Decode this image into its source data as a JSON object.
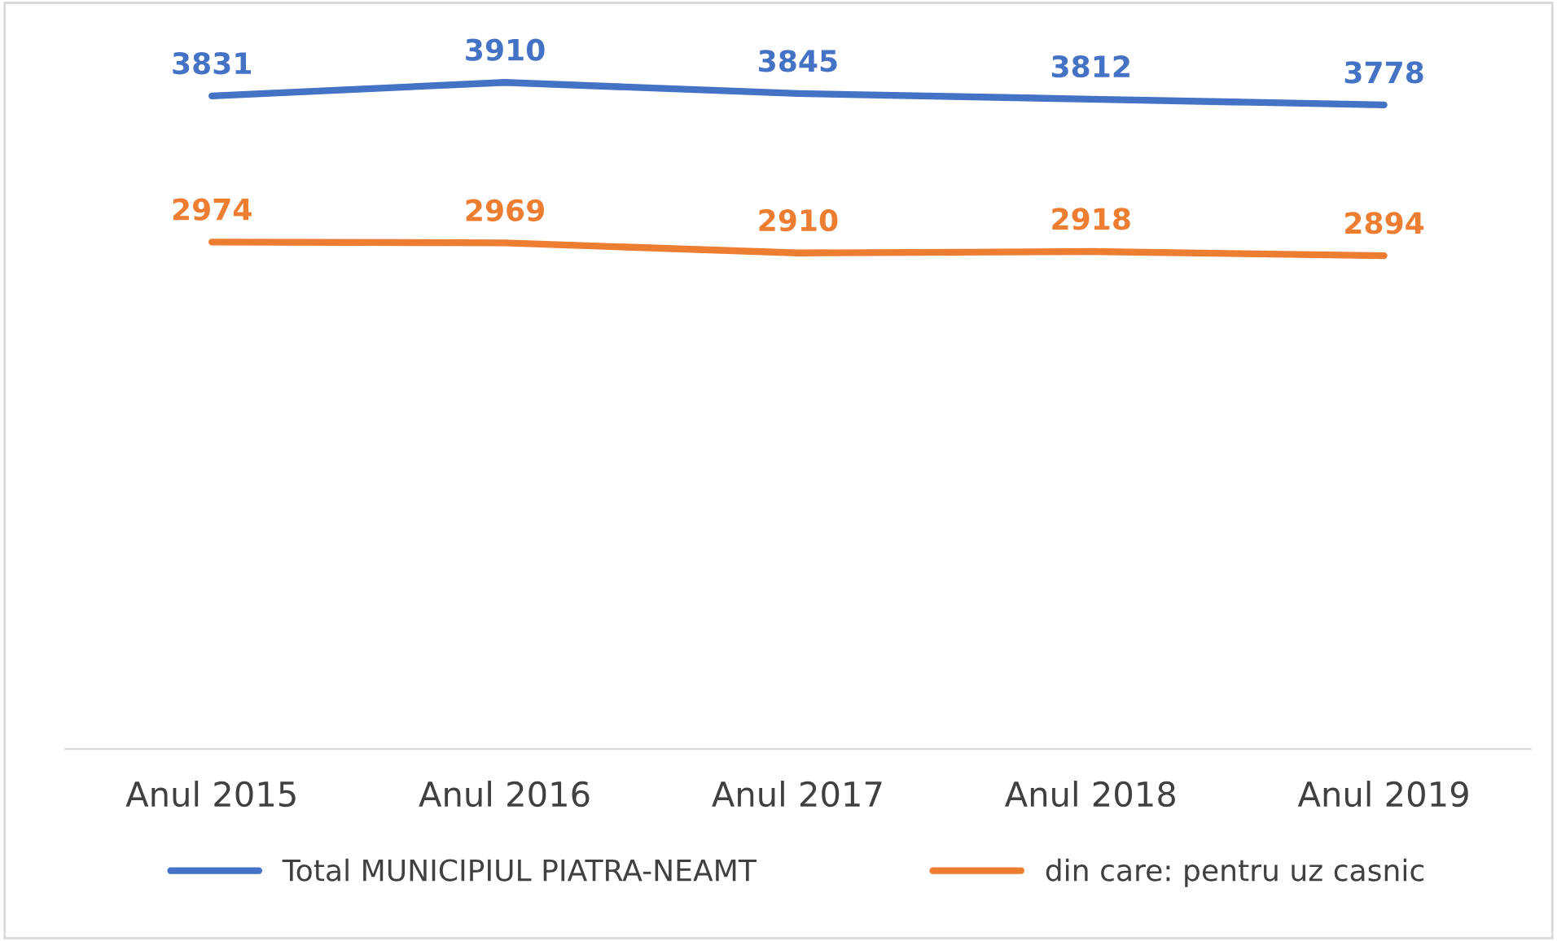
{
  "chart_data": {
    "type": "line",
    "categories": [
      "Anul 2015",
      "Anul 2016",
      "Anul 2017",
      "Anul 2018",
      "Anul 2019"
    ],
    "series": [
      {
        "name": "Total MUNICIPIUL PIATRA-NEAMT",
        "color": "#4472c4",
        "values": [
          3831,
          3910,
          3845,
          3812,
          3778
        ]
      },
      {
        "name": "din care: pentru uz casnic",
        "color": "#ed7d31",
        "values": [
          2974,
          2969,
          2910,
          2918,
          2894
        ]
      }
    ],
    "tick_labels": "x",
    "data_labels": true,
    "legend": "bottom",
    "marker": "none",
    "line_style": "solid"
  }
}
